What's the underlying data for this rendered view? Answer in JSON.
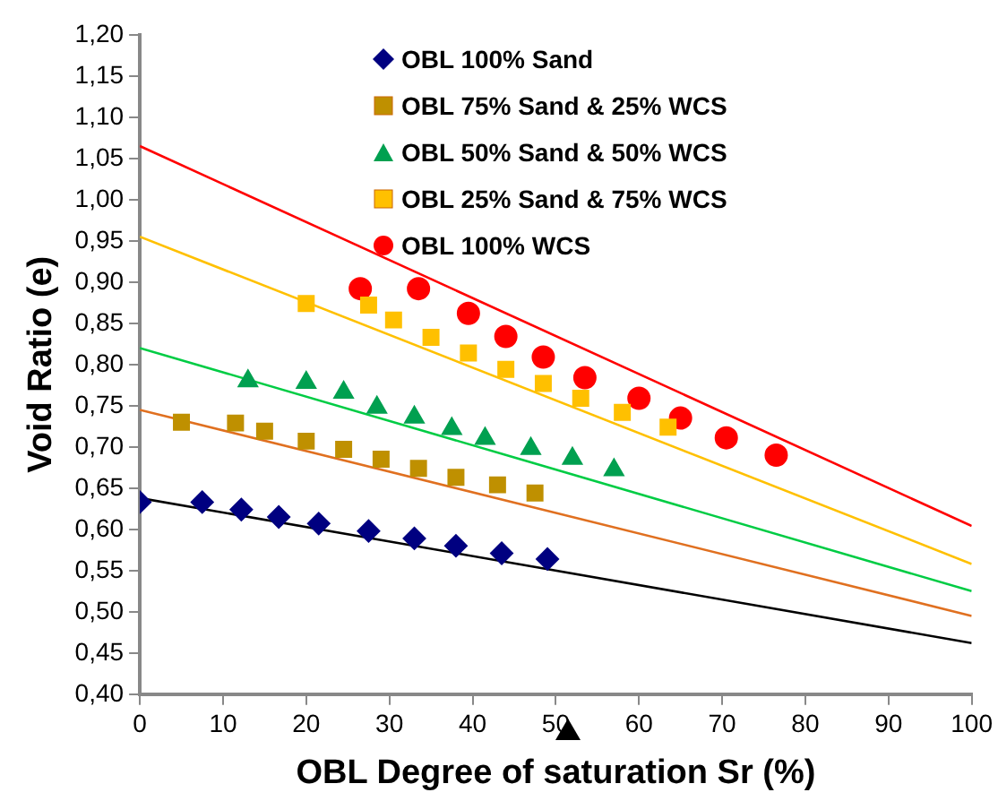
{
  "chart_data": {
    "type": "scatter",
    "xlabel": "OBL Degree of saturation Sr (%)",
    "ylabel": "Void Ratio (e)",
    "series": [
      {
        "name": "OBL 100% Sand",
        "color": "#000080",
        "marker": "diamond",
        "x": [
          0,
          7.5,
          12.2,
          16.7,
          21.5,
          27.5,
          33,
          38,
          43.5,
          49
        ],
        "values": [
          0.633,
          0.633,
          0.624,
          0.615,
          0.607,
          0.598,
          0.589,
          0.58,
          0.571,
          0.564
        ]
      },
      {
        "name": "OBL 75% Sand & 25% WCS",
        "color": "#bf9000",
        "marker": "square",
        "x": [
          5,
          11.5,
          15,
          20,
          24.5,
          29,
          33.5,
          38,
          43,
          47.5
        ],
        "values": [
          0.73,
          0.729,
          0.719,
          0.707,
          0.697,
          0.685,
          0.674,
          0.663,
          0.654,
          0.644
        ]
      },
      {
        "name": "OBL 50% Sand & 50% WCS",
        "color": "#00a050",
        "marker": "triangle",
        "x": [
          13,
          20,
          24.5,
          28.5,
          33,
          37.5,
          41.5,
          47,
          52,
          57
        ],
        "values": [
          0.78,
          0.778,
          0.766,
          0.748,
          0.736,
          0.722,
          0.71,
          0.698,
          0.686,
          0.672
        ]
      },
      {
        "name": "OBL 25% Sand & 75% WCS",
        "color": "#ffc000",
        "marker": "square",
        "x": [
          20,
          27.5,
          30.5,
          35,
          39.5,
          44,
          48.5,
          53,
          58,
          63.5
        ],
        "values": [
          0.874,
          0.872,
          0.854,
          0.833,
          0.814,
          0.794,
          0.777,
          0.759,
          0.742,
          0.724
        ]
      },
      {
        "name": "OBL 100% WCS",
        "color": "#ff0000",
        "marker": "circle",
        "x": [
          26.5,
          33.5,
          39.5,
          44,
          48.5,
          53.5,
          60,
          65,
          70.5,
          76.5
        ],
        "values": [
          0.892,
          0.892,
          0.862,
          0.834,
          0.809,
          0.784,
          0.759,
          0.735,
          0.711,
          0.69
        ]
      },
      {
        "type": "line",
        "color": "#000000",
        "x": [
          0,
          100
        ],
        "values": [
          0.638,
          0.462
        ]
      },
      {
        "type": "line",
        "color": "#e07020",
        "x": [
          0,
          100
        ],
        "values": [
          0.745,
          0.495
        ]
      },
      {
        "type": "line",
        "color": "#00cc44",
        "x": [
          0,
          100
        ],
        "values": [
          0.82,
          0.525
        ]
      },
      {
        "type": "line",
        "color": "#ffc000",
        "x": [
          0,
          100
        ],
        "values": [
          0.955,
          0.558
        ]
      },
      {
        "type": "line",
        "color": "#ff0000",
        "x": [
          0,
          100
        ],
        "values": [
          1.065,
          0.604
        ]
      }
    ],
    "xlim": [
      0,
      100
    ],
    "xticks": [
      0,
      10,
      20,
      30,
      40,
      50,
      60,
      70,
      80,
      90,
      100
    ],
    "ylim": [
      0.4,
      1.2
    ],
    "yticks": [
      {
        "value": 0.4,
        "label": "0,40"
      },
      {
        "value": 0.45,
        "label": "0,45"
      },
      {
        "value": 0.5,
        "label": "0,50"
      },
      {
        "value": 0.55,
        "label": "0,55"
      },
      {
        "value": 0.6,
        "label": "0,60"
      },
      {
        "value": 0.65,
        "label": "0,65"
      },
      {
        "value": 0.7,
        "label": "0,70"
      },
      {
        "value": 0.75,
        "label": "0,75"
      },
      {
        "value": 0.8,
        "label": "0,80"
      },
      {
        "value": 0.85,
        "label": "0,85"
      },
      {
        "value": 0.9,
        "label": "0,90"
      },
      {
        "value": 0.95,
        "label": "0,95"
      },
      {
        "value": 1.0,
        "label": "1,00"
      },
      {
        "value": 1.05,
        "label": "1,05"
      },
      {
        "value": 1.1,
        "label": "1,10"
      },
      {
        "value": 1.15,
        "label": "1,15"
      },
      {
        "value": 1.2,
        "label": "1,20"
      }
    ],
    "legend": "top right",
    "grid": false
  }
}
